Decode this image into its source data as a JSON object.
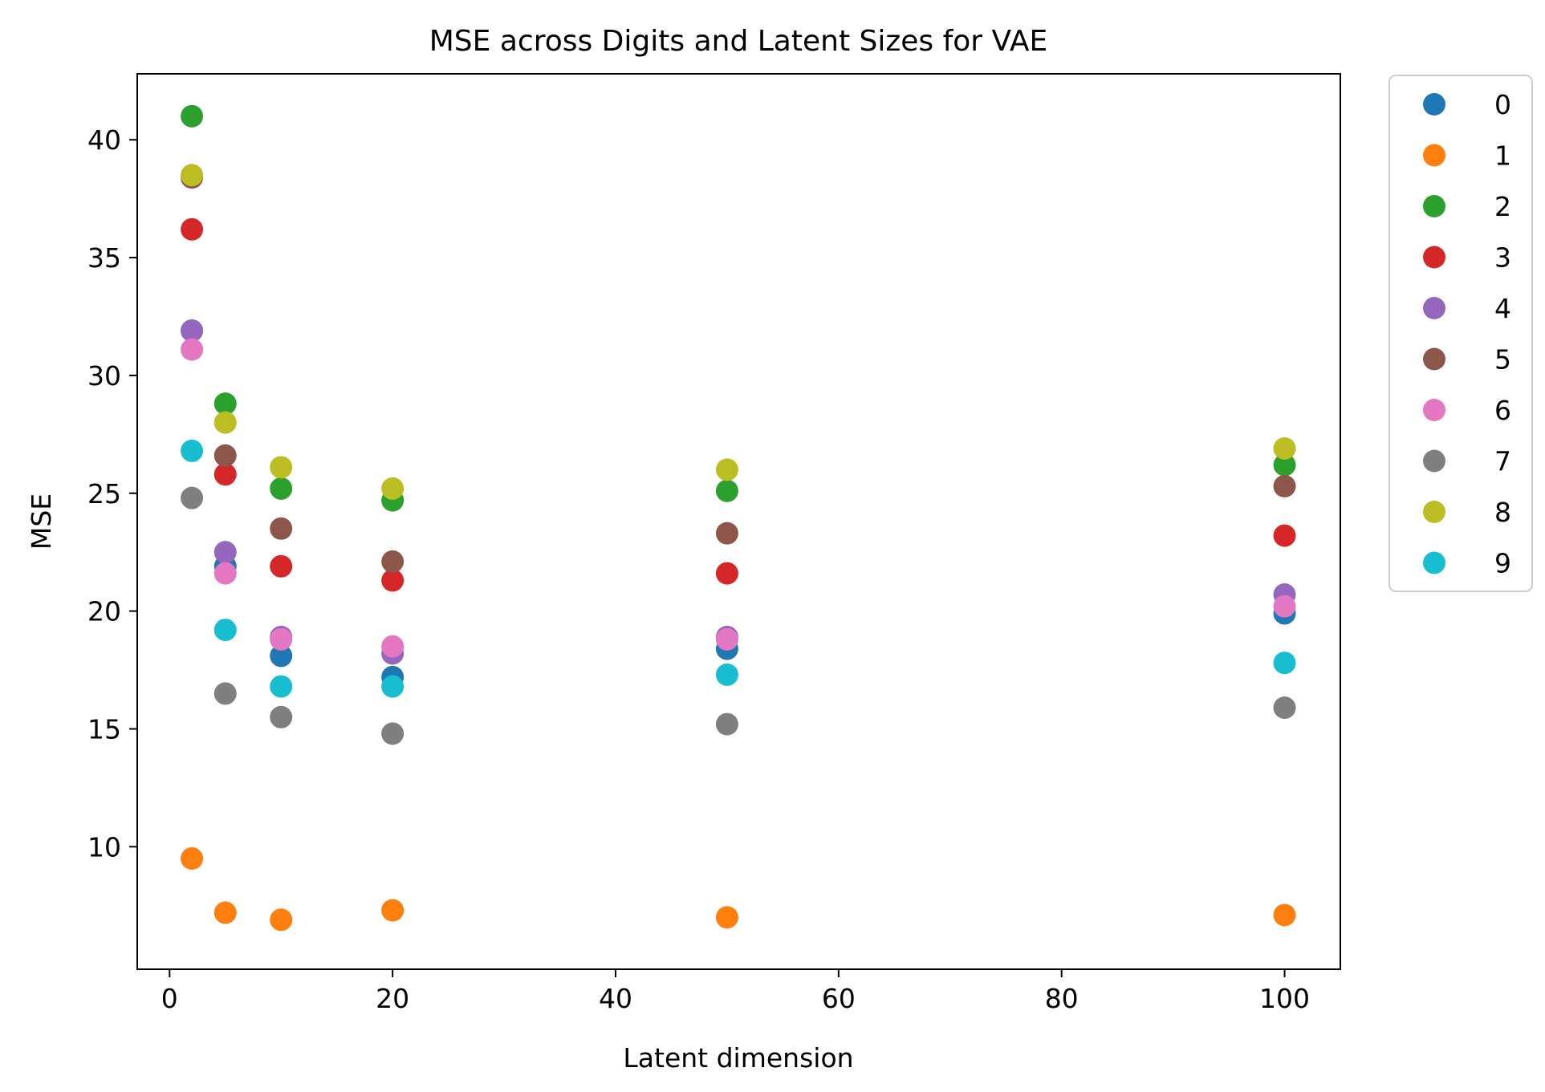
{
  "chart_data": {
    "type": "scatter",
    "title": "MSE across Digits and Latent Sizes for VAE",
    "xlabel": "Latent dimension",
    "ylabel": "MSE",
    "xlim": [
      -2.9,
      105
    ],
    "ylim": [
      4.8,
      42.8
    ],
    "xticks": [
      0,
      20,
      40,
      60,
      80,
      100
    ],
    "yticks": [
      10,
      15,
      20,
      25,
      30,
      35,
      40
    ],
    "grid": false,
    "legend_position": "outside-right",
    "x": [
      2,
      5,
      10,
      20,
      50,
      100
    ],
    "series": [
      {
        "name": "0",
        "color": "#1f77b4",
        "values": [
          31.9,
          21.9,
          18.1,
          17.2,
          18.4,
          19.9
        ]
      },
      {
        "name": "1",
        "color": "#ff7f0e",
        "values": [
          9.5,
          7.2,
          6.9,
          7.3,
          7.0,
          7.1
        ]
      },
      {
        "name": "2",
        "color": "#2ca02c",
        "values": [
          41.0,
          28.8,
          25.2,
          24.7,
          25.1,
          26.2
        ]
      },
      {
        "name": "3",
        "color": "#d62728",
        "values": [
          36.2,
          25.8,
          21.9,
          21.3,
          21.6,
          23.2
        ]
      },
      {
        "name": "4",
        "color": "#9467bd",
        "values": [
          31.9,
          22.5,
          18.9,
          18.2,
          18.9,
          20.7
        ]
      },
      {
        "name": "5",
        "color": "#8c564b",
        "values": [
          38.4,
          26.6,
          23.5,
          22.1,
          23.3,
          25.3
        ]
      },
      {
        "name": "6",
        "color": "#e377c2",
        "values": [
          31.1,
          21.6,
          18.8,
          18.5,
          18.8,
          20.2
        ]
      },
      {
        "name": "7",
        "color": "#7f7f7f",
        "values": [
          24.8,
          16.5,
          15.5,
          14.8,
          15.2,
          15.9
        ]
      },
      {
        "name": "8",
        "color": "#bcbd22",
        "values": [
          38.5,
          28.0,
          26.1,
          25.2,
          26.0,
          26.9
        ]
      },
      {
        "name": "9",
        "color": "#17becf",
        "values": [
          26.8,
          19.2,
          16.8,
          16.8,
          17.3,
          17.8
        ]
      }
    ]
  }
}
